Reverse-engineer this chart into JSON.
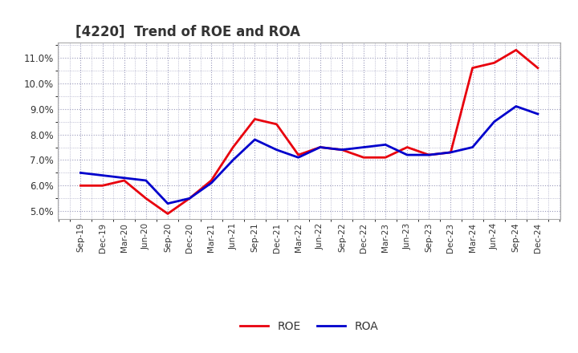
{
  "title": "[4220]  Trend of ROE and ROA",
  "x_labels": [
    "Sep-19",
    "Dec-19",
    "Mar-20",
    "Jun-20",
    "Sep-20",
    "Dec-20",
    "Mar-21",
    "Jun-21",
    "Sep-21",
    "Dec-21",
    "Mar-22",
    "Jun-22",
    "Sep-22",
    "Dec-22",
    "Mar-23",
    "Jun-23",
    "Sep-23",
    "Dec-23",
    "Mar-24",
    "Jun-24",
    "Sep-24",
    "Dec-24"
  ],
  "roe": [
    6.0,
    6.0,
    6.2,
    5.5,
    4.9,
    5.5,
    6.2,
    7.5,
    8.6,
    8.4,
    7.2,
    7.5,
    7.4,
    7.1,
    7.1,
    7.5,
    7.2,
    7.3,
    10.6,
    10.8,
    11.3,
    10.6
  ],
  "roa": [
    6.5,
    6.4,
    6.3,
    6.2,
    5.3,
    5.5,
    6.1,
    7.0,
    7.8,
    7.4,
    7.1,
    7.5,
    7.4,
    7.5,
    7.6,
    7.2,
    7.2,
    7.3,
    7.5,
    8.5,
    9.1,
    8.8
  ],
  "roe_color": "#e8000d",
  "roa_color": "#0000cc",
  "ylim": [
    4.7,
    11.6
  ],
  "yticks": [
    5.0,
    6.0,
    7.0,
    8.0,
    9.0,
    10.0,
    11.0
  ],
  "title_fontsize": 12,
  "legend_labels": [
    "ROE",
    "ROA"
  ],
  "background_color": "#ffffff",
  "grid_color": "#9999bb"
}
